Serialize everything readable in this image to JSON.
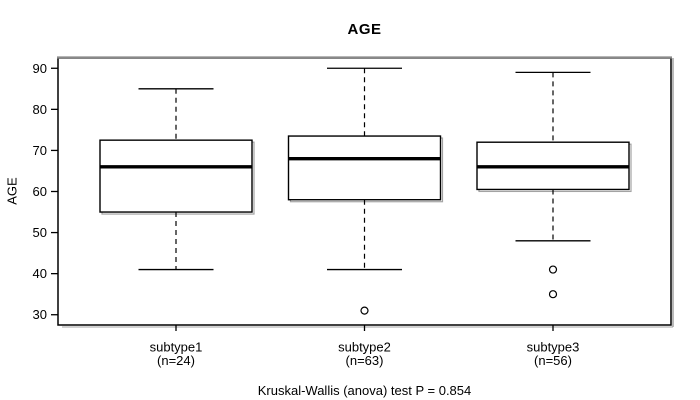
{
  "chart_data": {
    "type": "boxplot",
    "title": "AGE",
    "ylabel": "AGE",
    "xlabel": "",
    "footnote": "Kruskal-Wallis (anova) test P = 0.854",
    "y_ticks": [
      30,
      40,
      50,
      60,
      70,
      80,
      90
    ],
    "ylim": [
      27.5,
      92.5
    ],
    "grid": false,
    "legend": "none",
    "categories": [
      "subtype1",
      "subtype2",
      "subtype3"
    ],
    "category_sublabels": [
      "(n=24)",
      "(n=63)",
      "(n=56)"
    ],
    "series": [
      {
        "name": "subtype1",
        "n": 24,
        "whisker_low": 41,
        "q1": 55,
        "median": 66,
        "q3": 72.5,
        "whisker_high": 85,
        "outliers": []
      },
      {
        "name": "subtype2",
        "n": 63,
        "whisker_low": 41,
        "q1": 58,
        "median": 68,
        "q3": 73.5,
        "whisker_high": 90,
        "outliers": [
          31
        ]
      },
      {
        "name": "subtype3",
        "n": 56,
        "whisker_low": 48,
        "q1": 60.5,
        "median": 66,
        "q3": 72,
        "whisker_high": 89,
        "outliers": [
          41,
          35
        ]
      }
    ],
    "colors": {
      "stroke": "#000000",
      "text": "#000000",
      "box_fill": "#ffffff",
      "frame_top": "#8a8a8a",
      "shadow": "#a3a3a3",
      "background": "#ffffff"
    }
  }
}
